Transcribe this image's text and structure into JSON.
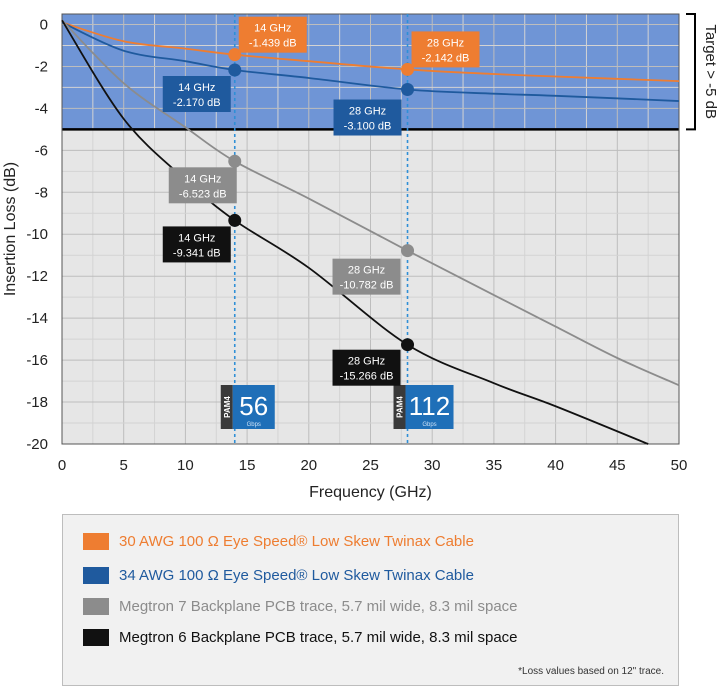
{
  "chart_data": {
    "type": "line",
    "xlabel": "Frequency (GHz)",
    "ylabel": "Insertion Loss (dB)",
    "xlim": [
      0,
      50
    ],
    "ylim": [
      -20,
      0.5
    ],
    "xticks": [
      0,
      5,
      10,
      15,
      20,
      25,
      30,
      35,
      40,
      45,
      50
    ],
    "yticks": [
      0,
      -2,
      -4,
      -6,
      -8,
      -10,
      -12,
      -14,
      -16,
      -18,
      -20
    ],
    "grid": true,
    "target": {
      "value": -5,
      "label": "Target > -5 dB",
      "band_color": "#6f95d6"
    },
    "series": [
      {
        "name": "30 AWG 100 Ω Eye Speed® Low Skew Twinax Cable",
        "color": "#ee7d31",
        "x": [
          0,
          5,
          10,
          14,
          20,
          28,
          35,
          40,
          50
        ],
        "y": [
          0.1,
          -0.8,
          -1.15,
          -1.439,
          -1.75,
          -2.142,
          -2.36,
          -2.48,
          -2.7
        ]
      },
      {
        "name": "34 AWG 100 Ω Eye Speed® Low Skew Twinax Cable",
        "color": "#1f5a9e",
        "x": [
          0,
          5,
          10,
          14,
          20,
          28,
          35,
          40,
          50
        ],
        "y": [
          0.1,
          -1.25,
          -1.75,
          -2.17,
          -2.55,
          -3.1,
          -3.3,
          -3.4,
          -3.65
        ]
      },
      {
        "name": "Megtron 7 Backplane PCB trace, 5.7 mil wide, 8.3 mil space",
        "color": "#8c8c8c",
        "x": [
          0,
          5,
          10,
          14,
          20,
          28,
          35,
          40,
          45,
          50
        ],
        "y": [
          0.2,
          -2.8,
          -4.9,
          -6.523,
          -8.3,
          -10.782,
          -12.9,
          -14.4,
          -15.9,
          -17.2
        ]
      },
      {
        "name": "Megtron 6 Backplane PCB trace, 5.7 mil wide, 8.3 mil space",
        "color": "#111111",
        "x": [
          0,
          5,
          10,
          14,
          20,
          28,
          35,
          40,
          47.5
        ],
        "y": [
          0.2,
          -4.5,
          -7.4,
          -9.341,
          -11.6,
          -15.266,
          -17.1,
          -18.2,
          -20.0
        ]
      }
    ],
    "markers": [
      {
        "x": 14,
        "y": -1.439,
        "label": [
          "14 GHz",
          "-1.439 dB"
        ],
        "color": "#ee7d31",
        "text_color": "#ffffff"
      },
      {
        "x": 28,
        "y": -2.142,
        "label": [
          "28 GHz",
          "-2.142 dB"
        ],
        "color": "#ee7d31",
        "text_color": "#ffffff"
      },
      {
        "x": 14,
        "y": -2.17,
        "label": [
          "14 GHz",
          "-2.170 dB"
        ],
        "color": "#1f5a9e",
        "text_color": "#ffffff"
      },
      {
        "x": 28,
        "y": -3.1,
        "label": [
          "28 GHz",
          "-3.100 dB"
        ],
        "color": "#1f5a9e",
        "text_color": "#ffffff"
      },
      {
        "x": 14,
        "y": -6.523,
        "label": [
          "14 GHz",
          "-6.523 dB"
        ],
        "color": "#8c8c8c",
        "text_color": "#ffffff"
      },
      {
        "x": 28,
        "y": -10.782,
        "label": [
          "28 GHz",
          "-10.782 dB"
        ],
        "color": "#8c8c8c",
        "text_color": "#ffffff"
      },
      {
        "x": 14,
        "y": -9.341,
        "label": [
          "14 GHz",
          "-9.341 dB"
        ],
        "color": "#111111",
        "text_color": "#ffffff"
      },
      {
        "x": 28,
        "y": -15.266,
        "label": [
          "28 GHz",
          "-15.266 dB"
        ],
        "color": "#111111",
        "text_color": "#ffffff"
      }
    ],
    "vlines": [
      14,
      28
    ],
    "badges": [
      {
        "x": 14,
        "tag": "PAM4",
        "value": "56",
        "unit": "Gbps"
      },
      {
        "x": 28,
        "tag": "PAM4",
        "value": "112",
        "unit": "Gbps"
      }
    ],
    "footnote": "*Loss values based on 12\" trace."
  }
}
